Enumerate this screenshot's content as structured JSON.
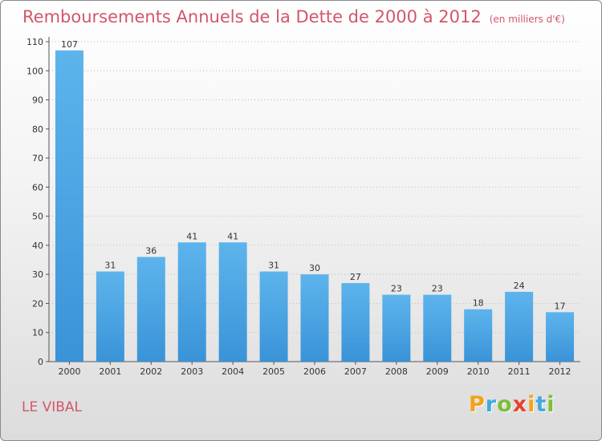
{
  "header": {
    "title": "Remboursements Annuels de la Dette de 2000 à 2012",
    "unit": "(en milliers d'€)"
  },
  "footer": {
    "commune": "LE VIBAL",
    "brand_letters": [
      "P",
      "r",
      "o",
      "x",
      "i",
      "t",
      "i"
    ],
    "brand_colors": [
      "#f3a21c",
      "#3fa9e0",
      "#7bbf3a",
      "#e2452b",
      "#f3a21c",
      "#3fa9e0",
      "#7bbf3a"
    ]
  },
  "chart_data": {
    "type": "bar",
    "title": "Remboursements Annuels de la Dette de 2000 à 2012",
    "subtitle": "(en milliers d'€)",
    "categories": [
      "2000",
      "2001",
      "2002",
      "2003",
      "2004",
      "2005",
      "2006",
      "2007",
      "2008",
      "2009",
      "2010",
      "2011",
      "2012"
    ],
    "values": [
      107,
      31,
      36,
      41,
      41,
      31,
      30,
      27,
      23,
      23,
      18,
      24,
      17
    ],
    "ylim": [
      0,
      110
    ],
    "yticks": [
      0,
      10,
      20,
      30,
      40,
      50,
      60,
      70,
      80,
      90,
      100,
      110
    ],
    "grid": true,
    "legend": "none",
    "bar_color": "#3a93d8",
    "bar_color_light": "#5db4ec"
  }
}
